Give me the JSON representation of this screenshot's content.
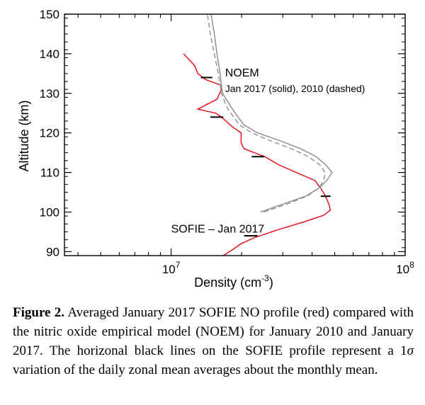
{
  "chart_data": {
    "type": "line",
    "xlabel_base": "Density (cm",
    "xlabel_exp": "-3",
    "xlabel_end": ")",
    "ylabel": "Altitude (km)",
    "xscale": "log",
    "xlim": [
      3500000,
      100000000
    ],
    "ylim": [
      89,
      150
    ],
    "x_ticks": [
      {
        "value": 10000000,
        "base": "10",
        "exp": "7"
      },
      {
        "value": 100000000,
        "base": "10",
        "exp": "8"
      }
    ],
    "y_ticks": [
      90,
      100,
      110,
      120,
      130,
      140,
      150
    ],
    "grid": false,
    "series": [
      {
        "name": "SOFIE – Jan 2017",
        "color": "#e8141e",
        "style": "solid",
        "points": [
          [
            16700000,
            89
          ],
          [
            18300000,
            90.5
          ],
          [
            19900000,
            92
          ],
          [
            22600000,
            93.5
          ],
          [
            28500000,
            95.5
          ],
          [
            36800000,
            97.5
          ],
          [
            44900000,
            99.2
          ],
          [
            47900000,
            100.5
          ],
          [
            47200000,
            102
          ],
          [
            45700000,
            104
          ],
          [
            43600000,
            106
          ],
          [
            41100000,
            108
          ],
          [
            34200000,
            110
          ],
          [
            28700000,
            112
          ],
          [
            25100000,
            114
          ],
          [
            22700000,
            115
          ],
          [
            20500000,
            116
          ],
          [
            19900000,
            117.5
          ],
          [
            19900000,
            120
          ],
          [
            18300000,
            121.5
          ],
          [
            16400000,
            124
          ],
          [
            15500000,
            125
          ],
          [
            13000000,
            126
          ],
          [
            14000000,
            127
          ],
          [
            15700000,
            128.5
          ],
          [
            16400000,
            131
          ],
          [
            16400000,
            132
          ],
          [
            14000000,
            133.5
          ],
          [
            13000000,
            135
          ],
          [
            12600000,
            137
          ],
          [
            11300000,
            140
          ]
        ]
      },
      {
        "name": "NOEM Jan 2017",
        "color": "#909090",
        "style": "solid",
        "points": [
          [
            24100000,
            100
          ],
          [
            30000000,
            102
          ],
          [
            37500000,
            104
          ],
          [
            42700000,
            106
          ],
          [
            46300000,
            108
          ],
          [
            48700000,
            110
          ],
          [
            45700000,
            112
          ],
          [
            41600000,
            114
          ],
          [
            35800000,
            116
          ],
          [
            29300000,
            118
          ],
          [
            23400000,
            120
          ],
          [
            20500000,
            122
          ],
          [
            19300000,
            124
          ],
          [
            18300000,
            126
          ],
          [
            17400000,
            128
          ],
          [
            16600000,
            130
          ],
          [
            16400000,
            132
          ],
          [
            16200000,
            135
          ],
          [
            15700000,
            140
          ],
          [
            15300000,
            145
          ],
          [
            14800000,
            150
          ]
        ]
      },
      {
        "name": "NOEM 2010",
        "color": "#909090",
        "style": "dashed",
        "points": [
          [
            24900000,
            100
          ],
          [
            31200000,
            102
          ],
          [
            38100000,
            104
          ],
          [
            42700000,
            106
          ],
          [
            44900000,
            108
          ],
          [
            45500000,
            110
          ],
          [
            43100000,
            112
          ],
          [
            38600000,
            114
          ],
          [
            32700000,
            116
          ],
          [
            26600000,
            118
          ],
          [
            22100000,
            120
          ],
          [
            19600000,
            122
          ],
          [
            18500000,
            124
          ],
          [
            17500000,
            126
          ],
          [
            16900000,
            128
          ],
          [
            16400000,
            130
          ],
          [
            16200000,
            132
          ],
          [
            15900000,
            135
          ],
          [
            15300000,
            140
          ],
          [
            14700000,
            145
          ],
          [
            14300000,
            150
          ]
        ]
      }
    ],
    "error_bars": [
      {
        "x": 21900000,
        "y": 94,
        "low": 20500000,
        "high": 23400000
      },
      {
        "x": 45700000,
        "y": 104,
        "low": 43600000,
        "high": 48000000
      },
      {
        "x": 23400000,
        "y": 114,
        "low": 22100000,
        "high": 25000000
      },
      {
        "x": 15700000,
        "y": 124,
        "low": 14700000,
        "high": 16700000
      },
      {
        "x": 14200000,
        "y": 134,
        "low": 13400000,
        "high": 15000000
      }
    ],
    "annotations": [
      {
        "id": "noem",
        "text": "NOEM",
        "x": 17000000,
        "y": 134.3
      },
      {
        "id": "noem-sub",
        "text": "Jan 2017 (solid), 2010 (dashed)",
        "x": 17000000,
        "y": 130.3
      },
      {
        "id": "sofie",
        "text": "SOFIE – Jan 2017",
        "x": 10000000,
        "y": 94.8
      }
    ]
  },
  "caption": {
    "label": "Figure 2.",
    "text1": " Averaged January 2017 SOFIE NO profile (red) compared with the nitric oxide empirical model (NOEM) for January 2010 and January 2017. The horizonal black lines on the SOFIE profile represent a 1",
    "sigma": "σ",
    "text2": " variation of the daily zonal mean averages about the monthly mean."
  }
}
